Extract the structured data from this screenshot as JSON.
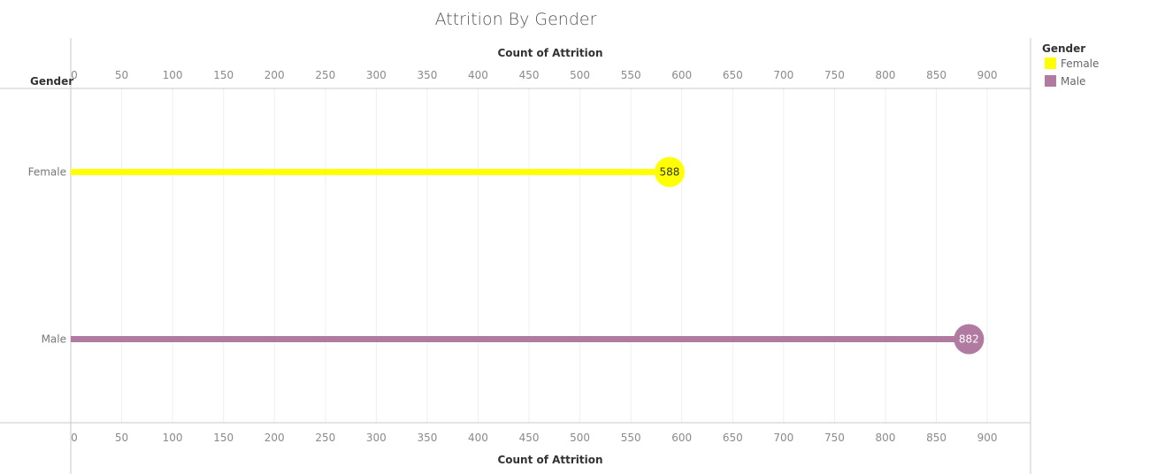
{
  "chart_data": {
    "type": "bar",
    "title": "Attrition By Gender",
    "xlabel": "Count of Attrition",
    "ylabel": "Gender",
    "categories": [
      "Female",
      "Male"
    ],
    "values": [
      588,
      882
    ],
    "data_labels": [
      "588",
      "882"
    ],
    "colors": [
      "#FFFF00",
      "#B07AA1"
    ],
    "label_colors": [
      "#333333",
      "#FFFFFF"
    ],
    "xlim": [
      0,
      940
    ],
    "ticks": [
      0,
      50,
      100,
      150,
      200,
      250,
      300,
      350,
      400,
      450,
      500,
      550,
      600,
      650,
      700,
      750,
      800,
      850,
      900
    ],
    "tick_labels": [
      "0",
      "50",
      "100",
      "150",
      "200",
      "250",
      "300",
      "350",
      "400",
      "450",
      "500",
      "550",
      "600",
      "650",
      "700",
      "750",
      "800",
      "850",
      "900"
    ],
    "grid": true,
    "mark_style": "lollipop",
    "legend": {
      "title": "Gender",
      "position": "right",
      "items": [
        {
          "label": "Female",
          "color": "#FFFF00"
        },
        {
          "label": "Male",
          "color": "#B07AA1"
        }
      ]
    }
  }
}
